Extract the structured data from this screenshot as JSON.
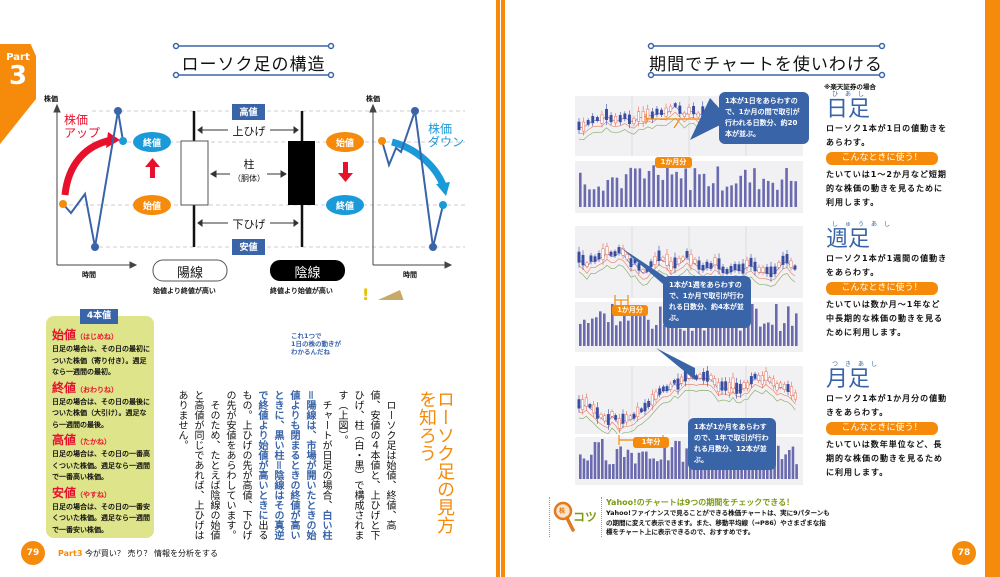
{
  "left_page": {
    "part_tab": {
      "label": "Part",
      "number": "3"
    },
    "title": "ローソク足の構造",
    "diagram": {
      "y_axis": "株価",
      "x_axis": "時間",
      "up_label": [
        "株価",
        "アップ"
      ],
      "down_label": [
        "株価",
        "ダウン"
      ],
      "high": "高値",
      "low": "安値",
      "open": "始値",
      "close": "終値",
      "upper_shadow": "上ひげ",
      "body": "柱",
      "body_sub": "（胴体）",
      "lower_shadow": "下ひげ",
      "bullish": "陽線",
      "bearish": "陰線",
      "bullish_caption": "始値より終値が高い",
      "bearish_caption": "終値より始値が高い"
    },
    "four_values": {
      "title": "4本値",
      "items": [
        {
          "name": "始値",
          "reading": "（はじめね）",
          "text": "日足の場合は、その日の最初についた株価（寄り付き）。週足なら一週間の最初。"
        },
        {
          "name": "終値",
          "reading": "（おわりね）",
          "text": "日足の場合は、その日の最後についた株価（大引け）。週足なら一週間の最後。"
        },
        {
          "name": "高値",
          "reading": "（たかね）",
          "text": "日足の場合は、その日の一番高くついた株価。週足なら一週間で一番高い株価。"
        },
        {
          "name": "安値",
          "reading": "（やすね）",
          "text": "日足の場合は、その日の一番安くついた株価。週足なら一週間で一番安い株価。"
        }
      ]
    },
    "speech": [
      "これ1つで",
      "1日の株の動きが",
      "わかるんだね"
    ],
    "heading": "ローソク足の見方を知ろう",
    "body": {
      "p1": "　ローソク足は始値、終値、高値、安値の４本値と、上ひげと下ひげ、柱（白・黒）で構成されます（上図）。",
      "p2a": "　チャートが日足の場合、",
      "p2b": "白い柱＝陽線は、市場が開いたときの始値よりも閉まるときの終値が高いときに、黒い柱＝陰線はその真逆で終値より始値が高いときに",
      "p2c": "出るもの。上ひげの先が高値、下ひげの先が安値をあらわしています。",
      "p3": "　そのため、たとえば陰線の始値と高値が同じであれば、上ひげはありません。"
    },
    "footer": {
      "page": "79",
      "part": "Part3",
      "text": "今が買い？ 売り？ 情報を分析をする"
    }
  },
  "right_page": {
    "title": "期間でチャートを使いわける",
    "note": "※楽天証券の場合",
    "sections": [
      {
        "title": "日足",
        "ruby": "ひあし",
        "desc": "ローソク1本が1日の値動きをあらわす。",
        "use_label": "こんなときに使う！",
        "use": "たいていは1〜2か月など短期的な株価の動きを見るために利用します。",
        "callout": "1本が1日をあらわすので、1か月の間で取引が行われる日数分、約20本が並ぶ。",
        "span": "1か月分"
      },
      {
        "title": "週足",
        "ruby": "しゅうあし",
        "desc": "ローソク1本が1週間の値動きをあらわす。",
        "use_label": "こんなときに使う！",
        "use": "たいていは数か月〜1年など中長期的な株価の動きを見るために利用します。",
        "callout": "1本が1週をあらわすので、1か月で取引が行われる日数分、約4本が並ぶ。",
        "span": "1か月分"
      },
      {
        "title": "月足",
        "ruby": "つきあし",
        "desc": "ローソク1本が1か月分の値動きをあらわす。",
        "use_label": "こんなときに使う！",
        "use": "たいていは数年単位など、長期的な株価の動きを見るために利用します。",
        "callout": "1本が1か月をあらわすので、1年で取引が行われる月数分、12本が並ぶ。",
        "span": "1年分"
      }
    ],
    "tip": {
      "badge": "コツ",
      "icon_text": "株",
      "title": "Yahoo!のチャートは9つの期間をチェックできる！",
      "text": "Yahoo!ファイナンスで見ることができる株価チャートは、実に9パターンもの期間に変えて表示できます。また、移動平均線（⇒P86）やさまざまな指標をチャート上に表示できるので、おすすめです。"
    },
    "footer": {
      "page": "78"
    }
  },
  "colors": {
    "accent": "#f58a0b",
    "blue": "#3a64a8",
    "red": "#e8112d",
    "cyan": "#1a9ad8",
    "green_box": "#dde48a"
  }
}
